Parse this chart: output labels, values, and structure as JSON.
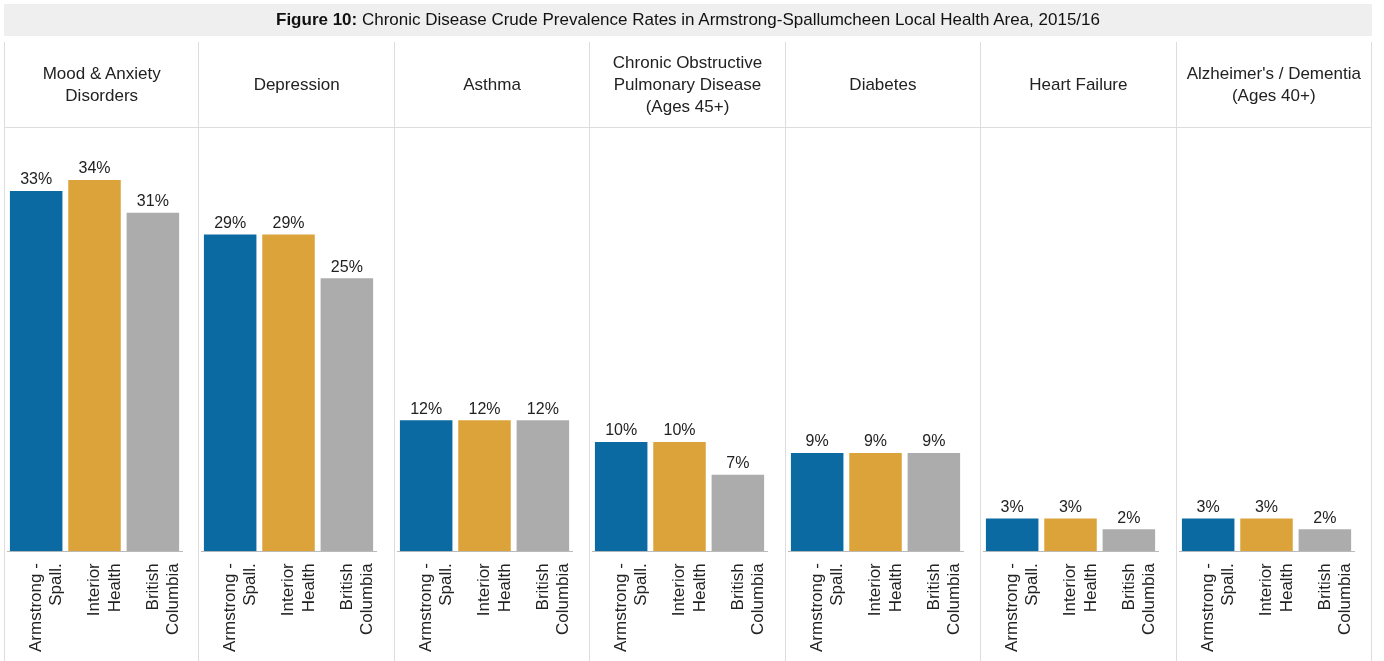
{
  "chart_data": [
    {
      "type": "bar",
      "subtitle": "Mood & Anxiety Disorders",
      "categories": [
        "Armstrong - Spall.",
        "Interior Health",
        "British Columbia"
      ],
      "values": [
        33,
        34,
        31
      ],
      "value_labels": [
        "33%",
        "34%",
        "31%"
      ],
      "colors": [
        "#0b6aa2",
        "#dba33a",
        "#acacac"
      ]
    },
    {
      "type": "bar",
      "subtitle": "Depression",
      "categories": [
        "Armstrong - Spall.",
        "Interior Health",
        "British Columbia"
      ],
      "values": [
        29,
        29,
        25
      ],
      "value_labels": [
        "29%",
        "29%",
        "25%"
      ],
      "colors": [
        "#0b6aa2",
        "#dba33a",
        "#acacac"
      ]
    },
    {
      "type": "bar",
      "subtitle": "Asthma",
      "categories": [
        "Armstrong - Spall.",
        "Interior Health",
        "British Columbia"
      ],
      "values": [
        12,
        12,
        12
      ],
      "value_labels": [
        "12%",
        "12%",
        "12%"
      ],
      "colors": [
        "#0b6aa2",
        "#dba33a",
        "#acacac"
      ]
    },
    {
      "type": "bar",
      "title": "Figure 10: Chronic Disease Crude Prevalence Rates in Armstrong-Spallumcheen Local Health Area, 2015/16",
      "subtitle": "Chronic Obstructive Pulmonary Disease (Ages 45+)",
      "categories": [
        "Armstrong - Spall.",
        "Interior Health",
        "British Columbia"
      ],
      "values": [
        10,
        10,
        7
      ],
      "value_labels": [
        "10%",
        "10%",
        "7%"
      ],
      "colors": [
        "#0b6aa2",
        "#dba33a",
        "#acacac"
      ]
    },
    {
      "type": "bar",
      "subtitle": "Diabetes",
      "categories": [
        "Armstrong - Spall.",
        "Interior Health",
        "British Columbia"
      ],
      "values": [
        9,
        9,
        9
      ],
      "value_labels": [
        "9%",
        "9%",
        "9%"
      ],
      "colors": [
        "#0b6aa2",
        "#dba33a",
        "#acacac"
      ]
    },
    {
      "type": "bar",
      "subtitle": "Heart Failure",
      "categories": [
        "Armstrong - Spall.",
        "Interior Health",
        "British Columbia"
      ],
      "values": [
        3,
        3,
        2
      ],
      "value_labels": [
        "3%",
        "3%",
        "2%"
      ],
      "colors": [
        "#0b6aa2",
        "#dba33a",
        "#acacac"
      ]
    },
    {
      "type": "bar",
      "subtitle": "Alzheimer's / Dementia (Ages 40+)",
      "categories": [
        "Armstrong - Spall.",
        "Interior Health",
        "British Columbia"
      ],
      "values": [
        3,
        3,
        2
      ],
      "value_labels": [
        "3%",
        "3%",
        "2%"
      ],
      "colors": [
        "#0b6aa2",
        "#dba33a",
        "#acacac"
      ]
    }
  ]
}
